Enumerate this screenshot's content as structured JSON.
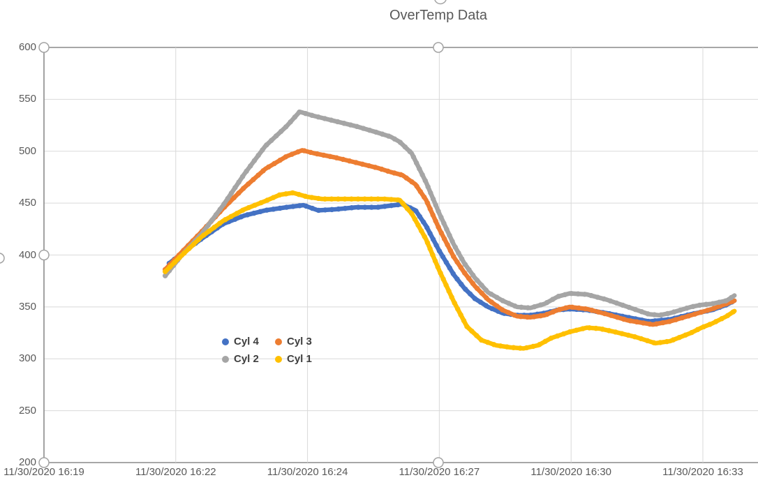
{
  "colors": {
    "background": "#ffffff",
    "gridline": "#d9d9d9",
    "axis_line": "#8a8a8a",
    "tick_label": "#595959",
    "title": "#595959",
    "legend_text": "#3f3f3f",
    "selection_handle_stroke": "#a3a3a3",
    "selection_handle_fill": "#ffffff"
  },
  "chart_data": {
    "type": "line",
    "title": "OverTemp Data",
    "xlabel": "",
    "ylabel": "",
    "ylim": [
      200,
      600
    ],
    "grid": true,
    "x_unit": "category-axis tick interval (0 = first tick, ticks evenly spaced)",
    "x_tick_labels": [
      "11/30/2020 16:19",
      "11/30/2020 16:22",
      "11/30/2020 16:24",
      "11/30/2020 16:27",
      "11/30/2020 16:30",
      "11/30/2020 16:33"
    ],
    "y_ticks": [
      600,
      550,
      500,
      450,
      400,
      350,
      300,
      250,
      200
    ],
    "legend": {
      "position": "inside lower-left",
      "entries": [
        {
          "label": "Cyl 4",
          "color": "#4472C4"
        },
        {
          "label": "Cyl 3",
          "color": "#ED7D31"
        },
        {
          "label": "Cyl 2",
          "color": "#A5A5A5"
        },
        {
          "label": "Cyl 1",
          "color": "#FFC000"
        }
      ]
    },
    "series": [
      {
        "name": "Cyl 4",
        "color": "#4472C4",
        "points": [
          [
            0.95,
            392
          ],
          [
            1.04,
            401
          ],
          [
            1.2,
            416
          ],
          [
            1.36,
            430
          ],
          [
            1.52,
            438
          ],
          [
            1.68,
            443
          ],
          [
            1.84,
            446
          ],
          [
            1.97,
            448
          ],
          [
            2.08,
            443
          ],
          [
            2.21,
            444
          ],
          [
            2.37,
            446
          ],
          [
            2.53,
            446
          ],
          [
            2.66,
            448
          ],
          [
            2.72,
            449
          ],
          [
            2.82,
            443
          ],
          [
            2.9,
            428
          ],
          [
            3.0,
            404
          ],
          [
            3.11,
            381
          ],
          [
            3.19,
            368
          ],
          [
            3.27,
            358
          ],
          [
            3.37,
            350
          ],
          [
            3.48,
            344
          ],
          [
            3.59,
            342
          ],
          [
            3.69,
            342
          ],
          [
            3.8,
            344
          ],
          [
            3.9,
            347
          ],
          [
            3.99,
            348
          ],
          [
            4.12,
            347
          ],
          [
            4.27,
            344
          ],
          [
            4.43,
            340
          ],
          [
            4.59,
            336
          ],
          [
            4.75,
            338
          ],
          [
            4.91,
            343
          ],
          [
            4.99,
            345
          ],
          [
            5.07,
            347
          ],
          [
            5.18,
            352
          ],
          [
            5.24,
            356
          ]
        ]
      },
      {
        "name": "Cyl 3",
        "color": "#ED7D31",
        "points": [
          [
            0.92,
            386
          ],
          [
            1.04,
            402
          ],
          [
            1.2,
            423
          ],
          [
            1.36,
            445
          ],
          [
            1.52,
            465
          ],
          [
            1.68,
            483
          ],
          [
            1.84,
            495
          ],
          [
            1.96,
            501
          ],
          [
            2.05,
            498
          ],
          [
            2.21,
            494
          ],
          [
            2.37,
            489
          ],
          [
            2.53,
            484
          ],
          [
            2.63,
            480
          ],
          [
            2.72,
            477
          ],
          [
            2.82,
            468
          ],
          [
            2.9,
            453
          ],
          [
            3.0,
            425
          ],
          [
            3.11,
            398
          ],
          [
            3.19,
            383
          ],
          [
            3.27,
            370
          ],
          [
            3.37,
            357
          ],
          [
            3.48,
            347
          ],
          [
            3.59,
            341
          ],
          [
            3.69,
            340
          ],
          [
            3.8,
            342
          ],
          [
            3.9,
            347
          ],
          [
            3.99,
            350
          ],
          [
            4.12,
            348
          ],
          [
            4.27,
            343
          ],
          [
            4.43,
            337
          ],
          [
            4.62,
            333
          ],
          [
            4.75,
            336
          ],
          [
            4.91,
            342
          ],
          [
            4.99,
            345
          ],
          [
            5.07,
            348
          ],
          [
            5.18,
            353
          ],
          [
            5.24,
            356
          ]
        ]
      },
      {
        "name": "Cyl 2",
        "color": "#A5A5A5",
        "points": [
          [
            0.92,
            380
          ],
          [
            1.04,
            399
          ],
          [
            1.2,
            421
          ],
          [
            1.36,
            448
          ],
          [
            1.52,
            478
          ],
          [
            1.68,
            505
          ],
          [
            1.84,
            524
          ],
          [
            1.94,
            538
          ],
          [
            2.05,
            534
          ],
          [
            2.21,
            529
          ],
          [
            2.37,
            524
          ],
          [
            2.53,
            518
          ],
          [
            2.63,
            514
          ],
          [
            2.7,
            509
          ],
          [
            2.79,
            498
          ],
          [
            2.9,
            470
          ],
          [
            3.0,
            440
          ],
          [
            3.11,
            410
          ],
          [
            3.19,
            392
          ],
          [
            3.27,
            378
          ],
          [
            3.37,
            364
          ],
          [
            3.48,
            356
          ],
          [
            3.59,
            350
          ],
          [
            3.69,
            349
          ],
          [
            3.8,
            353
          ],
          [
            3.9,
            360
          ],
          [
            3.99,
            363
          ],
          [
            4.12,
            362
          ],
          [
            4.27,
            357
          ],
          [
            4.43,
            350
          ],
          [
            4.59,
            343
          ],
          [
            4.67,
            342
          ],
          [
            4.75,
            344
          ],
          [
            4.91,
            350
          ],
          [
            4.99,
            352
          ],
          [
            5.07,
            353
          ],
          [
            5.18,
            356
          ],
          [
            5.24,
            361
          ]
        ]
      },
      {
        "name": "Cyl 1",
        "color": "#FFC000",
        "points": [
          [
            0.92,
            384
          ],
          [
            1.04,
            399
          ],
          [
            1.2,
            418
          ],
          [
            1.36,
            433
          ],
          [
            1.52,
            444
          ],
          [
            1.68,
            452
          ],
          [
            1.79,
            458
          ],
          [
            1.89,
            460
          ],
          [
            2.0,
            456
          ],
          [
            2.11,
            454
          ],
          [
            2.26,
            454
          ],
          [
            2.42,
            454
          ],
          [
            2.58,
            454
          ],
          [
            2.7,
            453
          ],
          [
            2.79,
            440
          ],
          [
            2.9,
            415
          ],
          [
            3.0,
            385
          ],
          [
            3.11,
            355
          ],
          [
            3.21,
            331
          ],
          [
            3.32,
            318
          ],
          [
            3.43,
            313
          ],
          [
            3.54,
            311
          ],
          [
            3.64,
            310
          ],
          [
            3.75,
            313
          ],
          [
            3.85,
            320
          ],
          [
            3.99,
            326
          ],
          [
            4.12,
            330
          ],
          [
            4.22,
            329
          ],
          [
            4.33,
            326
          ],
          [
            4.49,
            321
          ],
          [
            4.64,
            315
          ],
          [
            4.75,
            317
          ],
          [
            4.91,
            325
          ],
          [
            4.99,
            330
          ],
          [
            5.07,
            334
          ],
          [
            5.18,
            341
          ],
          [
            5.24,
            346
          ]
        ]
      }
    ]
  }
}
